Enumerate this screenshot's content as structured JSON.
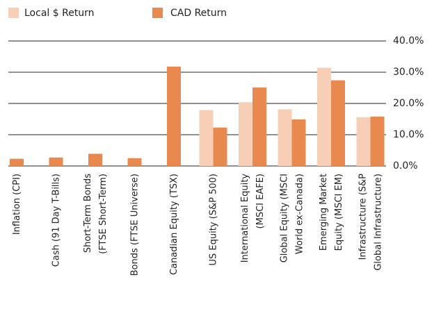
{
  "chart_data": {
    "type": "bar",
    "categories": [
      "Inflation (CPI)",
      "Cash (91 Day T-Bills)",
      "Short-Term Bonds\n(FTSE Short-Term)",
      "Bonds (FTSE Universe)",
      "Canadian Equity (TSX)",
      "US Equity (S&P 500)",
      "International Equity\n(MSCI EAFE)",
      "Global Equity (MSCI\nWorld ex-Canada)",
      "Emerging Market\nEquity (MSCI EM)",
      "Infrastructure (S&P\nGlobal Infrastructure)"
    ],
    "series": [
      {
        "name": "Local $ Return",
        "color": "#f7cfb6",
        "values": [
          null,
          null,
          null,
          null,
          null,
          17.9,
          20.4,
          18.1,
          31.4,
          15.6
        ]
      },
      {
        "name": "CAD Return",
        "color": "#e8894f",
        "values": [
          2.3,
          2.7,
          3.9,
          2.5,
          31.8,
          12.3,
          25.1,
          14.9,
          27.4,
          15.8
        ]
      }
    ],
    "ylim": [
      0,
      40
    ],
    "yticks": [
      {
        "value": 0,
        "label": "0.0%"
      },
      {
        "value": 10,
        "label": "10.0%"
      },
      {
        "value": 20,
        "label": "20.0%"
      },
      {
        "value": 30,
        "label": "30.0%"
      },
      {
        "value": 40,
        "label": "40.0%"
      }
    ],
    "grid": true,
    "legend": "top-left"
  }
}
